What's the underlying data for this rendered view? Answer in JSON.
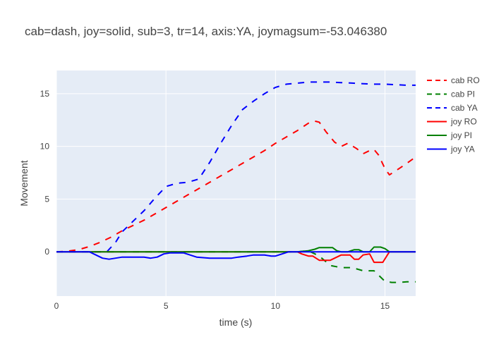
{
  "chart_data": {
    "type": "line",
    "title": "cab=dash, joy=solid, sub=3, tr=14, axis:YA, joymagsum=-53.046380",
    "xlabel": "time (s)",
    "ylabel": "Movement",
    "xlim": [
      0,
      16.4
    ],
    "ylim": [
      -4.2,
      17.2
    ],
    "x_ticks": [
      0,
      5,
      10,
      15
    ],
    "x_tick_labels": [
      "0",
      "5",
      "10",
      "15"
    ],
    "y_ticks": [
      0,
      5,
      10,
      15
    ],
    "y_tick_labels": [
      "0",
      "5",
      "10",
      "15"
    ],
    "grid": true,
    "legend_position": "right",
    "series": [
      {
        "name": "cab RO",
        "color": "#ff0000",
        "dash": "dash",
        "x": [
          0,
          0.5,
          1,
          1.5,
          2,
          2.5,
          3,
          3.5,
          4,
          4.5,
          5,
          5.5,
          6,
          6.5,
          7,
          7.5,
          8,
          8.5,
          9,
          9.5,
          10,
          10.5,
          11,
          11.5,
          11.8,
          12,
          12.3,
          12.7,
          13,
          13.3,
          13.7,
          14,
          14.3,
          14.5,
          14.7,
          15,
          15.2,
          15.5,
          16,
          16.4
        ],
        "y": [
          0,
          0.05,
          0.2,
          0.5,
          0.9,
          1.4,
          2.0,
          2.5,
          3.0,
          3.6,
          4.2,
          4.8,
          5.4,
          6.0,
          6.6,
          7.2,
          7.8,
          8.4,
          9.0,
          9.6,
          10.3,
          10.9,
          11.5,
          12.2,
          12.4,
          12.3,
          11.4,
          10.4,
          10.0,
          10.3,
          9.8,
          9.3,
          9.6,
          9.7,
          9.2,
          7.9,
          7.3,
          7.7,
          8.4,
          9.0
        ]
      },
      {
        "name": "cab PI",
        "color": "#008000",
        "dash": "dash",
        "x": [
          0,
          2,
          4,
          6,
          8,
          10,
          11,
          11.5,
          12,
          12.5,
          13,
          13.5,
          14,
          14.5,
          15,
          15.3,
          15.6,
          16,
          16.4
        ],
        "y": [
          0,
          0,
          0,
          0,
          0,
          0,
          0,
          0.1,
          -0.4,
          -1.3,
          -1.5,
          -1.5,
          -1.8,
          -1.8,
          -2.8,
          -2.9,
          -2.9,
          -2.85,
          -2.85
        ]
      },
      {
        "name": "cab YA",
        "color": "#0000ff",
        "dash": "dash",
        "x": [
          0,
          1,
          2,
          2.3,
          2.7,
          3,
          3.5,
          4,
          4.5,
          5,
          5.5,
          6,
          6.5,
          7,
          7.5,
          8,
          8.5,
          9,
          9.5,
          10,
          10.5,
          11,
          11.5,
          12,
          12.5,
          13,
          13.5,
          14,
          14.5,
          15,
          15.5,
          16,
          16.4
        ],
        "y": [
          0,
          0,
          0,
          0,
          0.9,
          1.9,
          2.9,
          3.9,
          5.1,
          6.2,
          6.5,
          6.6,
          6.9,
          8.5,
          10.3,
          12.0,
          13.5,
          14.3,
          15.0,
          15.6,
          15.9,
          16.0,
          16.1,
          16.1,
          16.1,
          16.05,
          16.0,
          15.95,
          15.9,
          15.9,
          15.85,
          15.8,
          15.8
        ]
      },
      {
        "name": "joy RO",
        "color": "#ff0000",
        "dash": "solid",
        "x": [
          0,
          11,
          11.2,
          11.5,
          11.7,
          12,
          12.3,
          12.5,
          12.7,
          13,
          13.2,
          13.4,
          13.6,
          13.8,
          14,
          14.3,
          14.5,
          14.7,
          14.9,
          15.2,
          15.5,
          16,
          16.4
        ],
        "y": [
          0,
          0,
          -0.2,
          -0.4,
          -0.4,
          -0.8,
          -0.8,
          -0.8,
          -0.6,
          -0.3,
          -0.3,
          -0.3,
          -0.7,
          -0.7,
          -0.3,
          -0.2,
          -1.0,
          -1.0,
          -1.0,
          0,
          0,
          0,
          0
        ]
      },
      {
        "name": "joy PI",
        "color": "#008000",
        "dash": "solid",
        "x": [
          0,
          11,
          11.5,
          11.8,
          12,
          12.3,
          12.6,
          12.8,
          13,
          13.3,
          13.6,
          13.8,
          14,
          14.3,
          14.5,
          14.8,
          15,
          15.2,
          16,
          16.4
        ],
        "y": [
          0,
          0,
          0.1,
          0.25,
          0.4,
          0.4,
          0.4,
          0.1,
          0,
          0,
          0.2,
          0.2,
          0,
          0,
          0.45,
          0.45,
          0.3,
          0,
          0,
          0
        ]
      },
      {
        "name": "joy YA",
        "color": "#0000ff",
        "dash": "solid",
        "x": [
          0,
          1.5,
          1.8,
          2.1,
          2.4,
          2.7,
          3,
          3.5,
          4,
          4.3,
          4.6,
          4.9,
          5.2,
          5.5,
          5.8,
          6.1,
          6.4,
          7,
          7.5,
          8,
          8.3,
          8.7,
          9,
          9.5,
          9.8,
          10,
          10.3,
          10.6,
          11,
          16.4
        ],
        "y": [
          0,
          0,
          -0.3,
          -0.6,
          -0.7,
          -0.6,
          -0.5,
          -0.5,
          -0.5,
          -0.6,
          -0.5,
          -0.2,
          -0.1,
          -0.1,
          -0.1,
          -0.3,
          -0.5,
          -0.6,
          -0.6,
          -0.6,
          -0.5,
          -0.4,
          -0.3,
          -0.3,
          -0.4,
          -0.4,
          -0.2,
          0,
          0,
          0
        ]
      }
    ]
  }
}
